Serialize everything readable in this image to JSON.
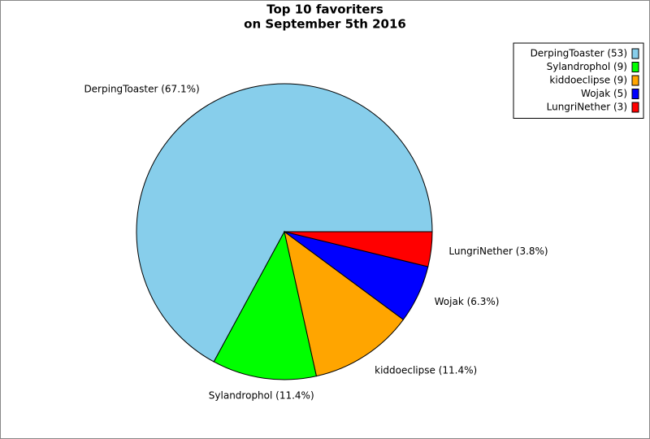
{
  "chart_data": {
    "type": "pie",
    "title": [
      "Top 10 favoriters",
      "on September 5th 2016"
    ],
    "categories": [
      "DerpingToaster",
      "Sylandrophol",
      "kiddoeclipse",
      "Wojak",
      "LungriNether"
    ],
    "values": [
      53,
      9,
      9,
      5,
      3
    ],
    "colors": [
      "#87ceeb",
      "#00ff00",
      "#ffa500",
      "#0000ff",
      "#ff0000"
    ],
    "slice_labels": [
      "DerpingToaster (67.1%)",
      "Sylandrophol (11.4%)",
      "kiddoeclipse (11.4%)",
      "Wojak (6.3%)",
      "LungriNether (3.8%)"
    ],
    "legend_labels": [
      "DerpingToaster (53)",
      "Sylandrophol (9)",
      "kiddoeclipse (9)",
      "Wojak (5)",
      "LungriNether (3)"
    ],
    "legend": "upper right"
  }
}
